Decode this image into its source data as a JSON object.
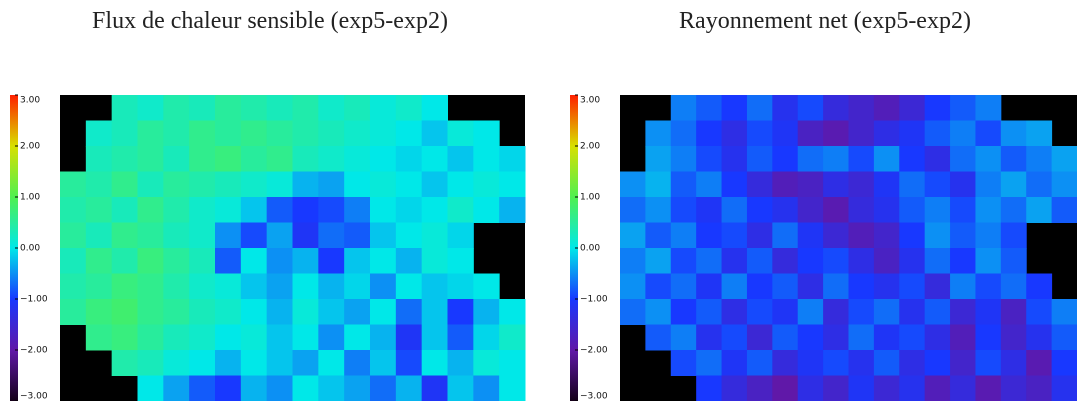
{
  "chart_data": [
    {
      "type": "heatmap",
      "title": "Flux de chaleur sensible (exp5-exp2)",
      "colorscale": [
        "#150018",
        "#6018a8",
        "#1838ff",
        "#00e8e8",
        "#50f050",
        "#d8e000",
        "#ff2000"
      ],
      "clim": [
        -3,
        3
      ],
      "cticks": [
        {
          "value": 3,
          "label": "3.00"
        },
        {
          "value": 2,
          "label": "2.00"
        },
        {
          "value": 1,
          "label": "1.00"
        },
        {
          "value": 0,
          "label": "0.00"
        },
        {
          "value": -1,
          "label": "−1.00"
        },
        {
          "value": -2,
          "label": "−2.00"
        },
        {
          "value": -3,
          "label": "−3.00"
        }
      ],
      "z": [
        [
          null,
          null,
          0.3,
          0.2,
          0.4,
          0.3,
          0.5,
          0.4,
          0.3,
          0.4,
          0.2,
          0.3,
          0.1,
          0.2,
          0.0,
          null,
          null,
          null
        ],
        [
          null,
          0.2,
          0.3,
          0.5,
          0.4,
          0.6,
          0.5,
          0.6,
          0.5,
          0.4,
          0.3,
          0.2,
          0.1,
          0.0,
          -0.2,
          0.1,
          0.0,
          null
        ],
        [
          null,
          0.3,
          0.4,
          0.5,
          0.3,
          0.6,
          0.7,
          0.5,
          0.6,
          0.3,
          0.2,
          0.1,
          0.0,
          -0.1,
          0.0,
          -0.2,
          0.0,
          -0.1
        ],
        [
          0.5,
          0.4,
          0.6,
          0.3,
          0.5,
          0.4,
          0.3,
          0.2,
          0.1,
          -0.3,
          -0.4,
          0.0,
          0.1,
          0.0,
          -0.2,
          0.0,
          0.1,
          0.0
        ],
        [
          0.4,
          0.5,
          0.3,
          0.6,
          0.4,
          0.2,
          0.1,
          -0.2,
          -0.8,
          -1.0,
          -0.9,
          -0.6,
          0.0,
          -0.1,
          0.0,
          0.2,
          0.0,
          -0.3
        ],
        [
          0.5,
          0.3,
          0.6,
          0.5,
          0.3,
          0.2,
          -0.5,
          -0.9,
          -0.4,
          -1.1,
          -0.7,
          -0.8,
          -0.2,
          0.0,
          0.1,
          -0.1,
          null,
          null
        ],
        [
          0.3,
          0.6,
          0.4,
          0.7,
          0.5,
          0.3,
          -0.8,
          0.0,
          -0.5,
          -0.3,
          -1.0,
          -0.2,
          0.0,
          -0.3,
          0.1,
          0.0,
          null,
          null
        ],
        [
          0.4,
          0.5,
          0.7,
          0.6,
          0.4,
          0.2,
          0.1,
          -0.2,
          -0.4,
          0.0,
          -0.3,
          -0.1,
          -0.5,
          0.0,
          -0.2,
          -0.1,
          0.0,
          null
        ],
        [
          0.5,
          0.7,
          0.8,
          0.6,
          0.5,
          0.3,
          0.2,
          0.0,
          -0.3,
          0.1,
          -0.2,
          -0.4,
          0.0,
          -0.7,
          -0.2,
          -1.0,
          -0.3,
          0.0
        ],
        [
          null,
          0.6,
          0.7,
          0.5,
          0.3,
          0.2,
          0.0,
          0.1,
          -0.2,
          0.0,
          -0.5,
          0.0,
          -0.3,
          -1.1,
          -0.2,
          -0.8,
          -0.1,
          0.2
        ],
        [
          null,
          null,
          0.4,
          0.3,
          0.1,
          0.0,
          -0.3,
          0.0,
          -0.2,
          -0.4,
          0.0,
          -0.6,
          -0.2,
          -0.9,
          0.0,
          -0.3,
          0.1,
          0.0
        ],
        [
          null,
          null,
          null,
          0.0,
          -0.4,
          -0.8,
          -1.0,
          -0.3,
          -0.5,
          0.0,
          -0.2,
          -0.4,
          -0.7,
          -0.3,
          -1.1,
          -0.2,
          -0.5,
          0.0
        ]
      ]
    },
    {
      "type": "heatmap",
      "title": "Rayonnement net (exp5-exp2)",
      "colorscale": [
        "#150018",
        "#6018a8",
        "#1838ff",
        "#00e8e8",
        "#50f050",
        "#d8e000",
        "#ff2000"
      ],
      "clim": [
        -3,
        3
      ],
      "cticks": [
        {
          "value": 3,
          "label": "3.00"
        },
        {
          "value": 2,
          "label": "2.00"
        },
        {
          "value": 1,
          "label": "1.00"
        },
        {
          "value": 0,
          "label": "0.00"
        },
        {
          "value": -1,
          "label": "−1.00"
        },
        {
          "value": -2,
          "label": "−2.00"
        },
        {
          "value": -3,
          "label": "−3.00"
        }
      ],
      "z": [
        [
          null,
          null,
          -0.6,
          -0.8,
          -1.0,
          -0.7,
          -1.2,
          -0.9,
          -1.4,
          -1.6,
          -1.8,
          -1.5,
          -1.0,
          -0.8,
          -0.6,
          null,
          null,
          null
        ],
        [
          null,
          -0.5,
          -0.7,
          -1.0,
          -1.3,
          -0.9,
          -1.1,
          -1.7,
          -1.9,
          -1.6,
          -1.3,
          -1.1,
          -0.8,
          -0.6,
          -0.9,
          -0.5,
          -0.4,
          null
        ],
        [
          null,
          -0.4,
          -0.6,
          -0.9,
          -1.2,
          -0.8,
          -1.0,
          -0.7,
          -0.6,
          -0.9,
          -0.5,
          -1.0,
          -1.3,
          -0.7,
          -0.5,
          -0.8,
          -0.6,
          -0.4
        ],
        [
          -0.5,
          -0.3,
          -0.8,
          -0.6,
          -1.0,
          -1.4,
          -1.8,
          -1.7,
          -1.3,
          -1.5,
          -1.1,
          -0.7,
          -0.9,
          -1.2,
          -0.6,
          -0.4,
          -0.7,
          -0.5
        ],
        [
          -0.7,
          -0.5,
          -0.9,
          -1.1,
          -0.7,
          -1.0,
          -1.2,
          -1.6,
          -1.9,
          -1.4,
          -1.2,
          -0.8,
          -0.6,
          -0.9,
          -0.5,
          -0.7,
          -0.4,
          -0.8
        ],
        [
          -0.4,
          -0.8,
          -0.6,
          -1.0,
          -0.9,
          -1.3,
          -0.7,
          -1.1,
          -1.5,
          -1.8,
          -1.6,
          -1.0,
          -0.5,
          -0.8,
          -0.6,
          -0.9,
          null,
          null
        ],
        [
          -0.6,
          -0.4,
          -0.9,
          -0.7,
          -1.2,
          -0.8,
          -1.4,
          -1.0,
          -0.9,
          -1.3,
          -1.7,
          -1.2,
          -0.7,
          -1.0,
          -0.5,
          -0.8,
          null,
          null
        ],
        [
          -0.5,
          -0.9,
          -0.7,
          -1.1,
          -0.6,
          -1.0,
          -0.8,
          -1.3,
          -0.7,
          -1.0,
          -1.2,
          -0.9,
          -1.4,
          -0.6,
          -0.9,
          -0.7,
          -1.0,
          null
        ],
        [
          -0.7,
          -0.5,
          -1.0,
          -0.8,
          -1.3,
          -0.9,
          -1.1,
          -0.6,
          -1.4,
          -0.9,
          -0.7,
          -1.2,
          -0.8,
          -1.5,
          -1.1,
          -1.7,
          -0.9,
          -0.6
        ],
        [
          null,
          -0.8,
          -0.6,
          -1.2,
          -0.9,
          -1.5,
          -0.8,
          -1.0,
          -1.3,
          -0.7,
          -1.1,
          -0.9,
          -1.3,
          -1.8,
          -1.0,
          -1.6,
          -1.2,
          -0.8
        ],
        [
          null,
          null,
          -0.9,
          -0.7,
          -1.1,
          -0.8,
          -1.4,
          -1.1,
          -0.9,
          -1.2,
          -0.8,
          -1.3,
          -1.0,
          -1.6,
          -0.9,
          -1.3,
          -1.9,
          -1.0
        ],
        [
          null,
          null,
          null,
          -1.0,
          -1.4,
          -1.7,
          -2.0,
          -1.3,
          -1.6,
          -1.1,
          -1.5,
          -1.2,
          -1.8,
          -1.4,
          -1.9,
          -1.5,
          -1.7,
          -1.2
        ]
      ]
    }
  ]
}
